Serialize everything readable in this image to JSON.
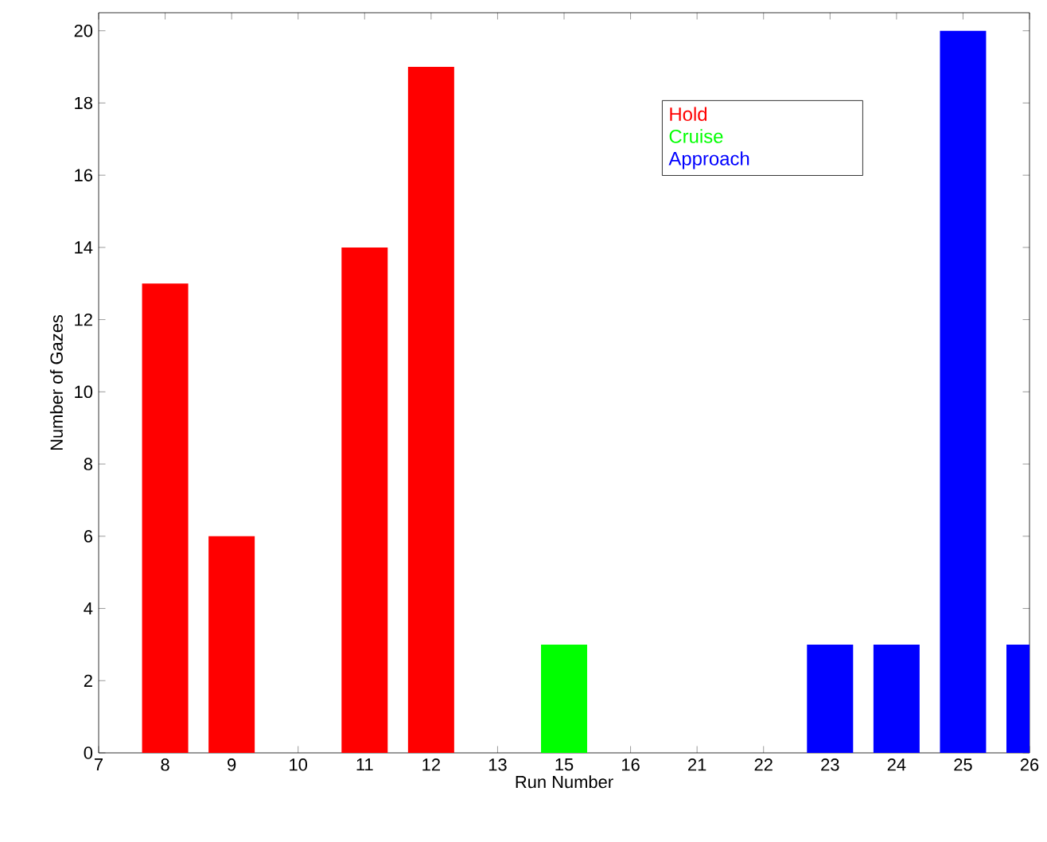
{
  "chart_data": {
    "type": "bar",
    "xlabel": "Run Number",
    "ylabel": "Number of Gazes",
    "categories": [
      "7",
      "8",
      "9",
      "10",
      "11",
      "12",
      "13",
      "15",
      "16",
      "21",
      "22",
      "23",
      "24",
      "25",
      "26"
    ],
    "series": [
      {
        "name": "Hold",
        "color": "#ff0000",
        "values": [
          null,
          13,
          6,
          null,
          14,
          19,
          null,
          null,
          null,
          null,
          null,
          null,
          null,
          null,
          null
        ]
      },
      {
        "name": "Cruise",
        "color": "#00ff00",
        "values": [
          null,
          null,
          null,
          null,
          null,
          null,
          null,
          3,
          null,
          null,
          null,
          null,
          null,
          null,
          null
        ]
      },
      {
        "name": "Approach",
        "color": "#0000ff",
        "values": [
          null,
          null,
          null,
          null,
          null,
          null,
          null,
          null,
          null,
          null,
          null,
          3,
          3,
          20,
          3
        ]
      }
    ],
    "ylim": [
      0,
      20.5
    ],
    "yticks": [
      0,
      2,
      4,
      6,
      8,
      10,
      12,
      14,
      16,
      18,
      20
    ],
    "legend": "top right",
    "grid": false
  }
}
